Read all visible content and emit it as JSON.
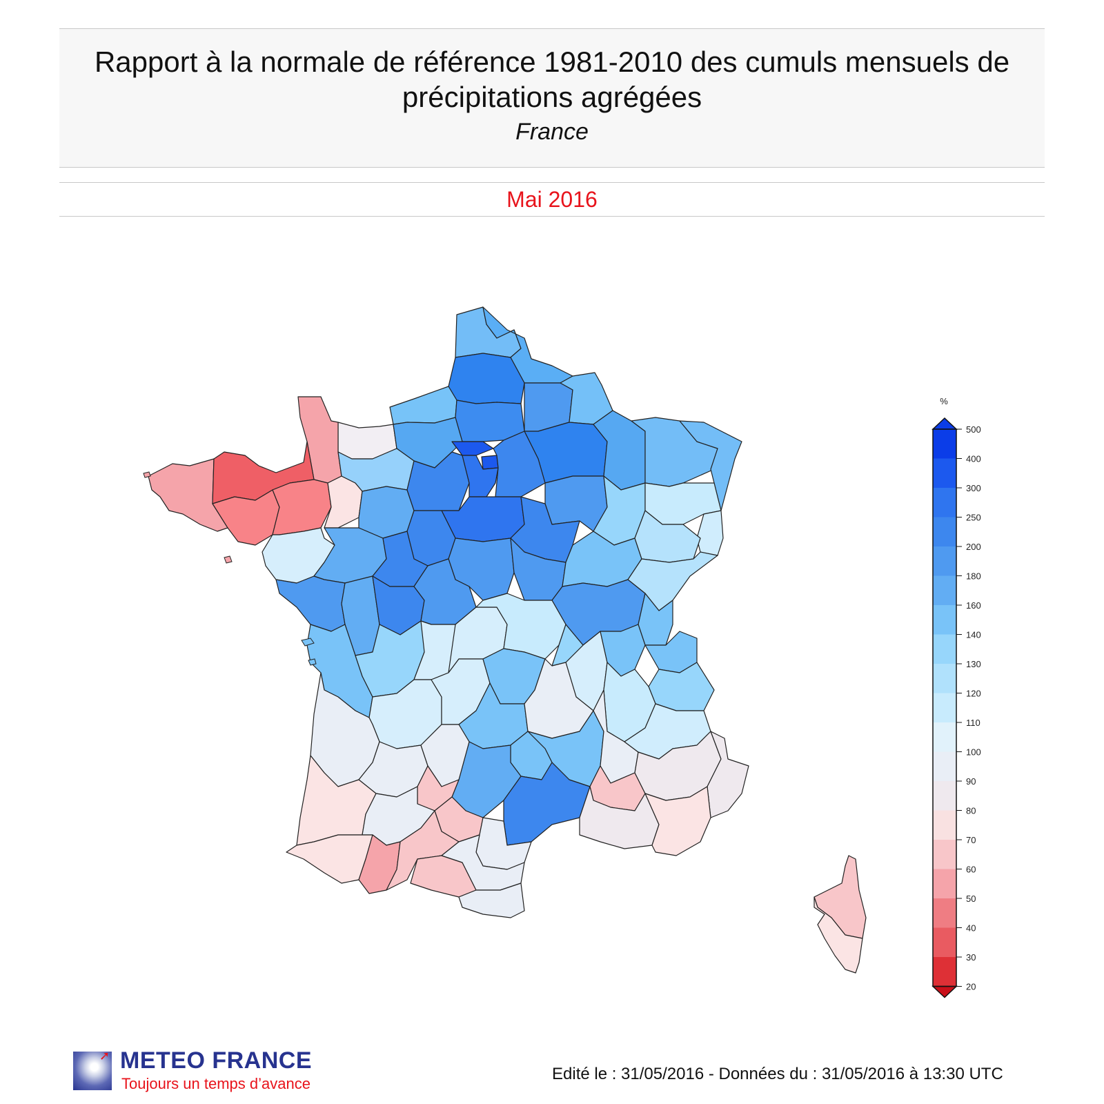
{
  "header": {
    "title": "Rapport à la normale de référence 1981-2010 des cumuls mensuels de précipitations agrégées",
    "subtitle": "France",
    "period": "Mai 2016"
  },
  "legend": {
    "unit": "%",
    "ticks": [
      "500",
      "400",
      "300",
      "250",
      "200",
      "180",
      "160",
      "140",
      "130",
      "120",
      "110",
      "100",
      "90",
      "80",
      "70",
      "60",
      "50",
      "40",
      "30",
      "20"
    ],
    "colors": [
      "#0b3de8",
      "#1c59ee",
      "#2f75ef",
      "#3d87ee",
      "#4f9af0",
      "#62adf3",
      "#79c3f8",
      "#97d6fb",
      "#b0e1fc",
      "#c8ebfd",
      "#e1f2fb",
      "#e9eef6",
      "#efe9ee",
      "#f9e1e1",
      "#f8c6c9",
      "#f5a4aa",
      "#ef7d83",
      "#e95b61",
      "#de3036",
      "#c9101a"
    ]
  },
  "regions": [
    {
      "name": "nord",
      "color": "#5aaef5"
    },
    {
      "name": "pas-de-calais",
      "color": "#73bdf7"
    },
    {
      "name": "somme",
      "color": "#2f83ef"
    },
    {
      "name": "aisne",
      "color": "#4f9af0"
    },
    {
      "name": "ardennes",
      "color": "#74c0f8"
    },
    {
      "name": "oise",
      "color": "#3d8cf0"
    },
    {
      "name": "seine-maritime",
      "color": "#77c3f8"
    },
    {
      "name": "calvados",
      "color": "#f2eef3"
    },
    {
      "name": "manche",
      "color": "#f5a4aa"
    },
    {
      "name": "eure",
      "color": "#56a8f2"
    },
    {
      "name": "val-doise",
      "color": "#1c59ee"
    },
    {
      "name": "paris",
      "color": "#1c59ee"
    },
    {
      "name": "marne",
      "color": "#2f83ef"
    },
    {
      "name": "meuse",
      "color": "#56a8f2"
    },
    {
      "name": "moselle",
      "color": "#73bdf7"
    },
    {
      "name": "bas-rhin",
      "color": "#73bdf7"
    },
    {
      "name": "finistere",
      "color": "#f5a4aa"
    },
    {
      "name": "cotes-darmor",
      "color": "#ef5f66"
    },
    {
      "name": "morbihan",
      "color": "#f88388"
    },
    {
      "name": "ille-et-vilaine",
      "color": "#f88388"
    },
    {
      "name": "mayenne",
      "color": "#fbe4e4"
    },
    {
      "name": "orne",
      "color": "#96d1fb"
    },
    {
      "name": "sarthe",
      "color": "#62adf3"
    },
    {
      "name": "eure-et-loir",
      "color": "#3d87ee"
    },
    {
      "name": "essonne",
      "color": "#2f75ef"
    },
    {
      "name": "loiret",
      "color": "#2f75ef"
    },
    {
      "name": "seine-et-marne",
      "color": "#3d87ee"
    },
    {
      "name": "aube",
      "color": "#4f9af0"
    },
    {
      "name": "yonne",
      "color": "#3d87ee"
    },
    {
      "name": "haute-marne",
      "color": "#97d6fb"
    },
    {
      "name": "vosges",
      "color": "#c8ebfd"
    },
    {
      "name": "haut-rhin",
      "color": "#d0edfd"
    },
    {
      "name": "loire-atlantique",
      "color": "#d6eefc"
    },
    {
      "name": "maine-et-loire",
      "color": "#62adf3"
    },
    {
      "name": "indre-et-loire",
      "color": "#3d87ee"
    },
    {
      "name": "loir-et-cher",
      "color": "#3d87ee"
    },
    {
      "name": "cher",
      "color": "#4f9af0"
    },
    {
      "name": "nievre",
      "color": "#4f9af0"
    },
    {
      "name": "cote-dor",
      "color": "#79c3f8"
    },
    {
      "name": "haute-saone",
      "color": "#b5e2fc"
    },
    {
      "name": "doubs",
      "color": "#b5e2fc"
    },
    {
      "name": "vendee",
      "color": "#4f9af0"
    },
    {
      "name": "deux-sevres",
      "color": "#62adf3"
    },
    {
      "name": "vienne",
      "color": "#3d87ee"
    },
    {
      "name": "indre",
      "color": "#4f9af0"
    },
    {
      "name": "saone-et-loire",
      "color": "#4f9af0"
    },
    {
      "name": "jura",
      "color": "#79c3f8"
    },
    {
      "name": "ain",
      "color": "#79c3f8"
    },
    {
      "name": "haute-savoie",
      "color": "#79c3f8"
    },
    {
      "name": "charente-maritime",
      "color": "#79c3f8"
    },
    {
      "name": "charente",
      "color": "#97d6fb"
    },
    {
      "name": "haute-vienne",
      "color": "#d6eefc"
    },
    {
      "name": "creuse",
      "color": "#d6eefc"
    },
    {
      "name": "allier",
      "color": "#c8ebfd"
    },
    {
      "name": "loire",
      "color": "#d6eefc"
    },
    {
      "name": "rhone",
      "color": "#97d6fb"
    },
    {
      "name": "savoie",
      "color": "#97d6fb"
    },
    {
      "name": "isere",
      "color": "#c8ebfd"
    },
    {
      "name": "dordogne",
      "color": "#d6eefc"
    },
    {
      "name": "correze",
      "color": "#d6eefc"
    },
    {
      "name": "puy-de-dome",
      "color": "#79c3f8"
    },
    {
      "name": "haute-loire",
      "color": "#e9eef6"
    },
    {
      "name": "cantal",
      "color": "#79c3f8"
    },
    {
      "name": "ardeche",
      "color": "#79c3f8"
    },
    {
      "name": "drome",
      "color": "#e9eef6"
    },
    {
      "name": "hautes-alpes",
      "color": "#d0edfd"
    },
    {
      "name": "gironde",
      "color": "#e9eef6"
    },
    {
      "name": "lot-et-garonne",
      "color": "#e9eef6"
    },
    {
      "name": "lot",
      "color": "#e9eef6"
    },
    {
      "name": "aveyron",
      "color": "#62adf3"
    },
    {
      "name": "lozere",
      "color": "#79c3f8"
    },
    {
      "name": "gard",
      "color": "#3d87ee"
    },
    {
      "name": "vaucluse",
      "color": "#f8c6c9"
    },
    {
      "name": "alpes-de-haute-provence",
      "color": "#efe9ee"
    },
    {
      "name": "alpes-maritimes",
      "color": "#efe9ee"
    },
    {
      "name": "landes",
      "color": "#fbe4e4"
    },
    {
      "name": "gers",
      "color": "#e9eef6"
    },
    {
      "name": "tarn-et-garonne",
      "color": "#f8c6c9"
    },
    {
      "name": "tarn",
      "color": "#f8c6c9"
    },
    {
      "name": "herault",
      "color": "#e9eef6"
    },
    {
      "name": "bouches-du-rhone",
      "color": "#efe9ee"
    },
    {
      "name": "var",
      "color": "#fbe4e4"
    },
    {
      "name": "pyrenees-atlantiques",
      "color": "#fbe4e4"
    },
    {
      "name": "hautes-pyrenees",
      "color": "#f5a4aa"
    },
    {
      "name": "haute-garonne",
      "color": "#f8c6c9"
    },
    {
      "name": "ariege",
      "color": "#f8c6c9"
    },
    {
      "name": "aude",
      "color": "#e9eef6"
    },
    {
      "name": "pyrenees-orientales",
      "color": "#e9eef6"
    },
    {
      "name": "haute-corse",
      "color": "#f8c6c9"
    },
    {
      "name": "corse-du-sud",
      "color": "#fbe4e4"
    }
  ],
  "footer": {
    "logo_name": "METEO FRANCE",
    "logo_slogan": "Toujours un temps d’avance",
    "edit_info": "Edité le : 31/05/2016 - Données du : 31/05/2016 à 13:30 UTC"
  }
}
